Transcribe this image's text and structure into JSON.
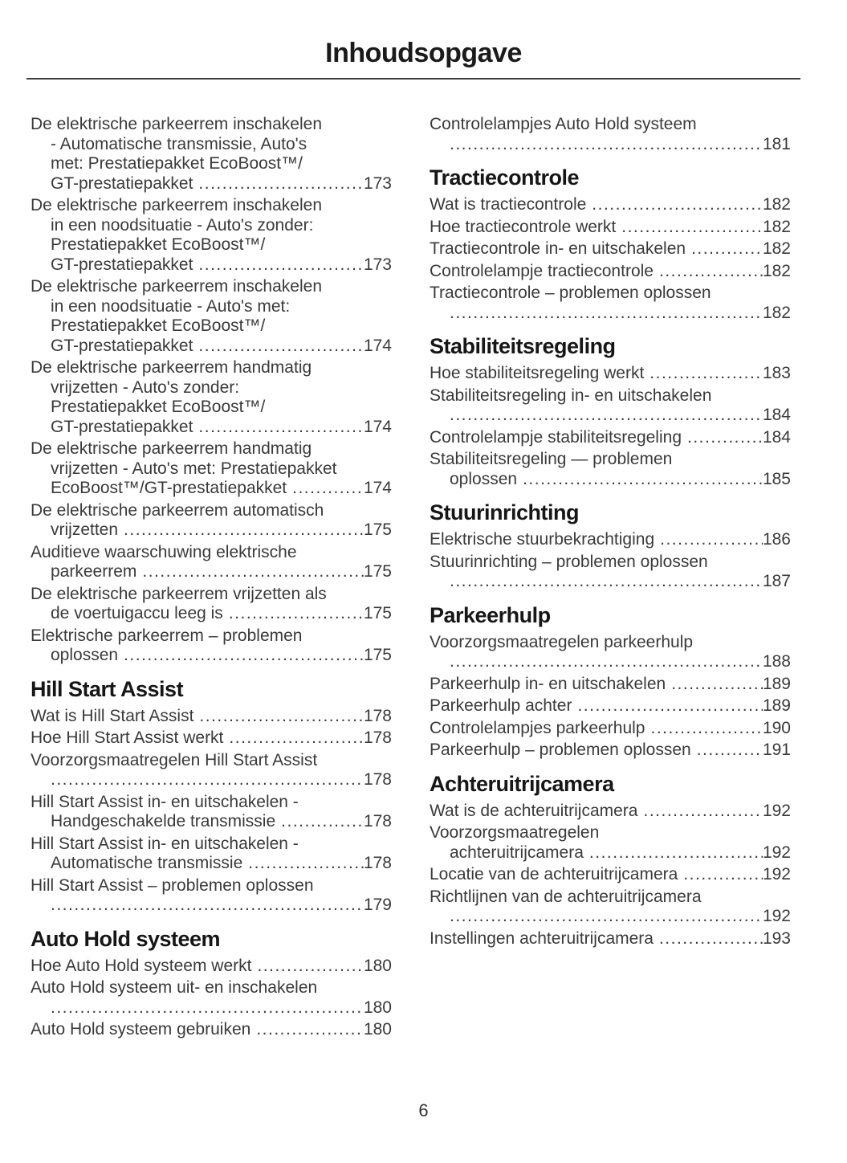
{
  "title": "Inhoudsopgave",
  "page_number": "6",
  "columns": {
    "left": [
      {
        "kind": "entry",
        "pre": [
          "De elektrische parkeerrem inschakelen",
          "- Automatische transmissie, Auto's",
          "met: Prestatiepakket EcoBoost™/"
        ],
        "last": "GT-prestatiepakket",
        "page": "173"
      },
      {
        "kind": "entry",
        "pre": [
          "De elektrische parkeerrem inschakelen",
          "in een noodsituatie - Auto's zonder:",
          "Prestatiepakket EcoBoost™/"
        ],
        "last": "GT-prestatiepakket",
        "page": "173"
      },
      {
        "kind": "entry",
        "pre": [
          "De elektrische parkeerrem inschakelen",
          "in een noodsituatie - Auto's met:",
          "Prestatiepakket EcoBoost™/"
        ],
        "last": "GT-prestatiepakket",
        "page": "174"
      },
      {
        "kind": "entry",
        "pre": [
          "De elektrische parkeerrem handmatig",
          "vrijzetten - Auto's zonder:",
          "Prestatiepakket EcoBoost™/"
        ],
        "last": "GT-prestatiepakket",
        "page": "174"
      },
      {
        "kind": "entry",
        "pre": [
          "De elektrische parkeerrem handmatig",
          "vrijzetten - Auto's met: Prestatiepakket"
        ],
        "last": "EcoBoost™/GT-prestatiepakket",
        "page": "174"
      },
      {
        "kind": "entry",
        "pre": [
          "De elektrische parkeerrem automatisch"
        ],
        "last": "vrijzetten",
        "page": "175"
      },
      {
        "kind": "entry",
        "pre": [
          "Auditieve waarschuwing elektrische"
        ],
        "last": "parkeerrem",
        "page": "175"
      },
      {
        "kind": "entry",
        "pre": [
          "De elektrische parkeerrem vrijzetten als"
        ],
        "last": "de voertuigaccu leeg is",
        "page": "175"
      },
      {
        "kind": "entry",
        "pre": [
          "Elektrische parkeerrem – problemen"
        ],
        "last": "oplossen",
        "page": "175"
      },
      {
        "kind": "heading",
        "text": "Hill Start Assist"
      },
      {
        "kind": "entry",
        "pre": [],
        "last": "Wat is Hill Start Assist",
        "page": "178"
      },
      {
        "kind": "entry",
        "pre": [],
        "last": "Hoe Hill Start Assist werkt",
        "page": "178"
      },
      {
        "kind": "entry",
        "pre": [
          "Voorzorgsmaatregelen Hill Start Assist"
        ],
        "last": "",
        "page": "178"
      },
      {
        "kind": "entry",
        "pre": [
          "Hill Start Assist in- en uitschakelen -"
        ],
        "last": "Handgeschakelde transmissie",
        "page": "178"
      },
      {
        "kind": "entry",
        "pre": [
          "Hill Start Assist in- en uitschakelen -"
        ],
        "last": "Automatische transmissie",
        "page": "178"
      },
      {
        "kind": "entry",
        "pre": [
          "Hill Start Assist – problemen oplossen"
        ],
        "last": "",
        "page": "179"
      },
      {
        "kind": "heading",
        "text": "Auto Hold systeem"
      },
      {
        "kind": "entry",
        "pre": [],
        "last": "Hoe Auto Hold systeem werkt",
        "page": "180"
      },
      {
        "kind": "entry",
        "pre": [
          "Auto Hold systeem uit- en inschakelen"
        ],
        "last": "",
        "page": "180"
      },
      {
        "kind": "entry",
        "pre": [],
        "last": "Auto Hold systeem gebruiken",
        "page": "180"
      }
    ],
    "right": [
      {
        "kind": "entry",
        "pre": [
          "Controlelampjes Auto Hold systeem"
        ],
        "last": "",
        "page": "181"
      },
      {
        "kind": "heading",
        "text": "Tractiecontrole"
      },
      {
        "kind": "entry",
        "pre": [],
        "last": "Wat is tractiecontrole",
        "page": "182"
      },
      {
        "kind": "entry",
        "pre": [],
        "last": "Hoe tractiecontrole werkt",
        "page": "182"
      },
      {
        "kind": "entry",
        "pre": [],
        "last": "Tractiecontrole in- en uitschakelen",
        "page": "182"
      },
      {
        "kind": "entry",
        "pre": [],
        "last": "Controlelampje tractiecontrole",
        "page": "182"
      },
      {
        "kind": "entry",
        "pre": [
          "Tractiecontrole – problemen oplossen"
        ],
        "last": "",
        "page": "182"
      },
      {
        "kind": "heading",
        "text": "Stabiliteitsregeling"
      },
      {
        "kind": "entry",
        "pre": [],
        "last": "Hoe stabiliteitsregeling werkt",
        "page": "183"
      },
      {
        "kind": "entry",
        "pre": [
          "Stabiliteitsregeling in- en uitschakelen"
        ],
        "last": "",
        "page": "184"
      },
      {
        "kind": "entry",
        "pre": [],
        "last": "Controlelampje stabiliteitsregeling",
        "page": "184"
      },
      {
        "kind": "entry",
        "pre": [
          "Stabiliteitsregeling — problemen"
        ],
        "last": "oplossen",
        "page": "185"
      },
      {
        "kind": "heading",
        "text": "Stuurinrichting"
      },
      {
        "kind": "entry",
        "pre": [],
        "last": "Elektrische stuurbekrachtiging",
        "page": "186"
      },
      {
        "kind": "entry",
        "pre": [
          "Stuurinrichting – problemen oplossen"
        ],
        "last": "",
        "page": "187"
      },
      {
        "kind": "heading",
        "text": "Parkeerhulp"
      },
      {
        "kind": "entry",
        "pre": [
          "Voorzorgsmaatregelen parkeerhulp"
        ],
        "last": "",
        "page": "188"
      },
      {
        "kind": "entry",
        "pre": [],
        "last": "Parkeerhulp in- en uitschakelen",
        "page": "189"
      },
      {
        "kind": "entry",
        "pre": [],
        "last": "Parkeerhulp achter",
        "page": "189"
      },
      {
        "kind": "entry",
        "pre": [],
        "last": "Controlelampjes parkeerhulp",
        "page": "190"
      },
      {
        "kind": "entry",
        "pre": [],
        "last": "Parkeerhulp – problemen oplossen",
        "page": "191"
      },
      {
        "kind": "heading",
        "text": "Achteruitrijcamera"
      },
      {
        "kind": "entry",
        "pre": [],
        "last": "Wat is de achteruitrijcamera",
        "page": "192"
      },
      {
        "kind": "entry",
        "pre": [
          "Voorzorgsmaatregelen"
        ],
        "last": "achteruitrijcamera",
        "page": "192"
      },
      {
        "kind": "entry",
        "pre": [],
        "last": "Locatie van de achteruitrijcamera",
        "page": "192"
      },
      {
        "kind": "entry",
        "pre": [
          "Richtlijnen van de achteruitrijcamera"
        ],
        "last": "",
        "page": "192"
      },
      {
        "kind": "entry",
        "pre": [],
        "last": "Instellingen achteruitrijcamera",
        "page": "193"
      }
    ]
  }
}
